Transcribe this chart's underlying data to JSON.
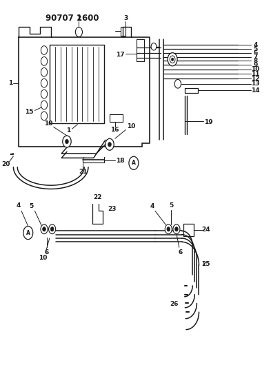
{
  "title": "90707 1600",
  "bg_color": "#ffffff",
  "line_color": "#1a1a1a",
  "fig_width": 3.93,
  "fig_height": 5.33,
  "dpi": 100
}
